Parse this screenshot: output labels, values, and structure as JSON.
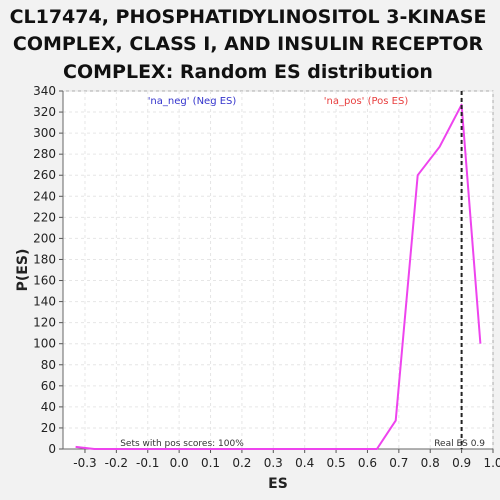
{
  "title_lines": [
    "CL17474, PHOSPHATIDYLINOSITOL 3-KINASE",
    "COMPLEX, CLASS I, AND INSULIN RECEPTOR",
    "COMPLEX: Random ES distribution"
  ],
  "chart_data": {
    "type": "line",
    "title": "CL17474, PHOSPHATIDYLINOSITOL 3-KINASE COMPLEX, CLASS I, AND INSULIN RECEPTOR COMPLEX: Random ES distribution",
    "xlabel": "ES",
    "ylabel": "P(ES)",
    "xlim": [
      -0.37,
      1.0
    ],
    "ylim": [
      0,
      340
    ],
    "x_ticks": [
      -0.3,
      -0.2,
      -0.1,
      0.0,
      0.1,
      0.2,
      0.3,
      0.4,
      0.5,
      0.6,
      0.7,
      0.8,
      0.9,
      1.0
    ],
    "x_tick_labels": [
      "-0.3",
      "-0.2",
      "-0.1",
      "0.0",
      "0.1",
      "0.2",
      "0.3",
      "0.4",
      "0.5",
      "0.6",
      "0.7",
      "0.8",
      "0.9",
      "1.0"
    ],
    "y_ticks": [
      0,
      20,
      40,
      60,
      80,
      100,
      120,
      140,
      160,
      180,
      200,
      220,
      240,
      260,
      280,
      300,
      320,
      340
    ],
    "y_tick_labels": [
      "0",
      "20",
      "40",
      "60",
      "80",
      "100",
      "120",
      "140",
      "160",
      "180",
      "200",
      "220",
      "240",
      "260",
      "280",
      "300",
      "320",
      "340"
    ],
    "grid": true,
    "series": [
      {
        "name": "'na_neg' (Neg ES)",
        "color": "#3333cc",
        "x": [],
        "y": []
      },
      {
        "name": "'na_pos' (Pos ES)",
        "color": "#e83e3e",
        "line_color": "#ee44ee",
        "x": [
          -0.33,
          -0.27,
          -0.2,
          -0.1,
          0.0,
          0.1,
          0.2,
          0.3,
          0.4,
          0.5,
          0.56,
          0.63,
          0.69,
          0.76,
          0.83,
          0.9,
          0.96
        ],
        "y": [
          2,
          0,
          0,
          0,
          0,
          0,
          0,
          0,
          0,
          0,
          0,
          0,
          27,
          260,
          287,
          327,
          100
        ]
      }
    ],
    "real_es": 0.9,
    "annotations": {
      "sets_text": "Sets with pos scores: 100%",
      "real_es_text": "Real ES 0.9"
    }
  }
}
